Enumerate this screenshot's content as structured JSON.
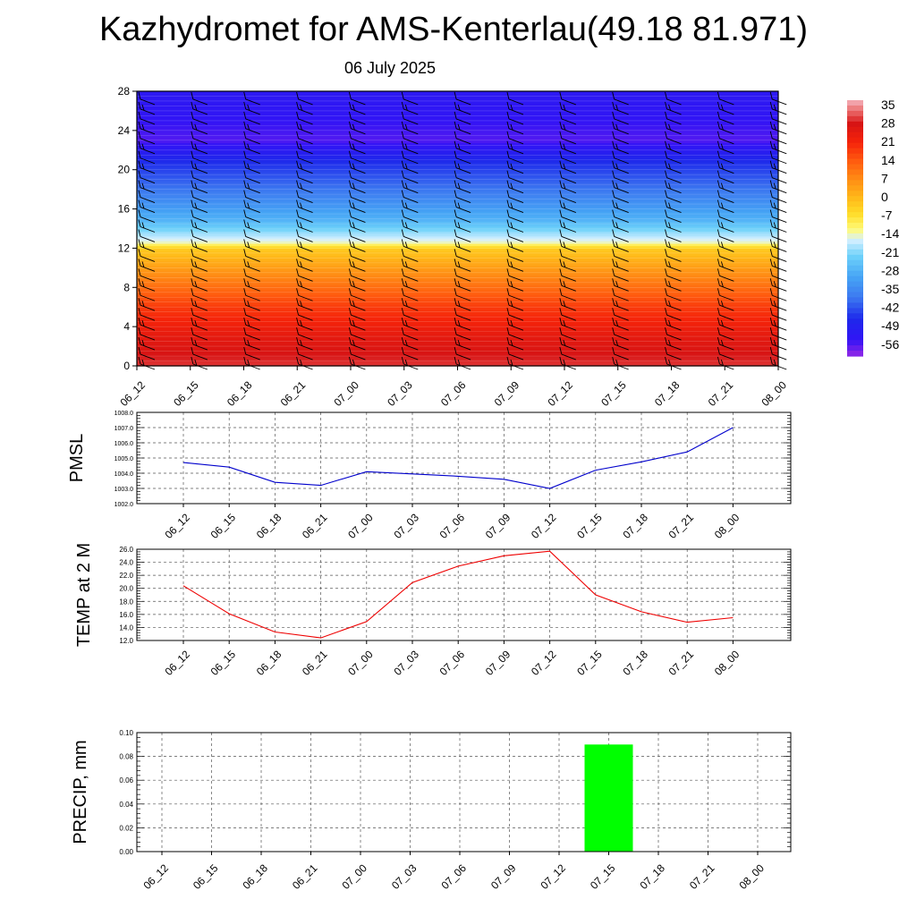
{
  "header": {
    "title": "Kazhydromet for AMS-Kenterlau(49.18 81.971)",
    "subtitle": "06 July 2025"
  },
  "chart_data": [
    {
      "type": "heatmap",
      "title": "",
      "xlabel": "",
      "ylabel": "",
      "x": [
        "06_12",
        "06_15",
        "06_18",
        "06_21",
        "07_00",
        "07_03",
        "07_06",
        "07_09",
        "07_12",
        "07_15",
        "07_18",
        "07_21",
        "08_00"
      ],
      "y_ticks": [
        "0",
        "4",
        "8",
        "12",
        "16",
        "20",
        "24",
        "28"
      ],
      "ylim": [
        0,
        28
      ],
      "colorbar": {
        "labels": [
          "35",
          "28",
          "21",
          "14",
          "7",
          "0",
          "-7",
          "-14",
          "-21",
          "-28",
          "-35",
          "-42",
          "-49",
          "-56"
        ],
        "range": [
          -60,
          37
        ]
      },
      "overlay": "wind barbs"
    },
    {
      "type": "line",
      "ylabel": "PMSL",
      "x": [
        "06_12",
        "06_15",
        "06_18",
        "06_21",
        "07_00",
        "07_03",
        "07_06",
        "07_09",
        "07_12",
        "07_15",
        "07_18",
        "07_21",
        "08_00"
      ],
      "y_ticks": [
        "1002.0",
        "1003.0",
        "1004.0",
        "1005.0",
        "1006.0",
        "1007.0",
        "1008.0"
      ],
      "ylim": [
        1002,
        1008
      ],
      "grid": true,
      "series": [
        {
          "values": [
            1004.7,
            1004.4,
            1003.4,
            1003.2,
            1004.1,
            1003.95,
            1003.8,
            1003.6,
            1003.0,
            1004.2,
            1004.75,
            1005.4,
            1007.0
          ],
          "color": "#0000cc"
        }
      ]
    },
    {
      "type": "line",
      "ylabel": "TEMP at 2 M",
      "x": [
        "06_12",
        "06_15",
        "06_18",
        "06_21",
        "07_00",
        "07_03",
        "07_06",
        "07_09",
        "07_12",
        "07_15",
        "07_18",
        "07_21",
        "08_00"
      ],
      "y_ticks": [
        "12.0",
        "14.0",
        "16.0",
        "18.0",
        "20.0",
        "22.0",
        "24.0",
        "26.0"
      ],
      "ylim": [
        12,
        26
      ],
      "grid": true,
      "series": [
        {
          "values": [
            20.4,
            16.1,
            13.3,
            12.4,
            14.9,
            20.9,
            23.4,
            25.0,
            25.7,
            19.0,
            16.4,
            14.8,
            15.5
          ],
          "color": "#ee0000"
        }
      ]
    },
    {
      "type": "bar",
      "ylabel": "PRECIP, mm",
      "categories": [
        "06_12",
        "06_15",
        "06_18",
        "06_21",
        "07_00",
        "07_03",
        "07_06",
        "07_09",
        "07_12",
        "07_15",
        "07_18",
        "07_21",
        "08_00"
      ],
      "y_ticks": [
        "0.00",
        "0.02",
        "0.04",
        "0.06",
        "0.08",
        "0.10"
      ],
      "ylim": [
        0,
        0.1
      ],
      "grid": true,
      "values": [
        0,
        0,
        0,
        0,
        0,
        0,
        0,
        0,
        0,
        0.09,
        0,
        0,
        0
      ],
      "color": "#00ff00"
    }
  ]
}
